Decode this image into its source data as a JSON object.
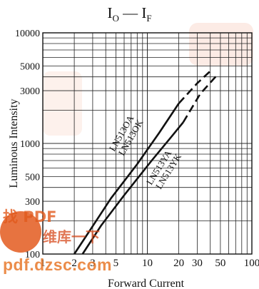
{
  "chart_data": {
    "type": "line",
    "title": {
      "main": "I",
      "sub1": "O",
      "sep": "—",
      "main2": "I",
      "sub2": "F"
    },
    "xlabel": "Forward Current",
    "ylabel": "Luminous Intensity",
    "x_scale": "log",
    "y_scale": "log",
    "xlim": [
      1,
      100
    ],
    "ylim": [
      100,
      10000
    ],
    "x_ticks": [
      "1",
      "2",
      "3",
      "5",
      "10",
      "20",
      "30",
      "50",
      "100"
    ],
    "y_ticks": [
      "100",
      "300",
      "500",
      "1000",
      "3000",
      "5000",
      "10000"
    ],
    "grid": true,
    "series": [
      {
        "name": "LN513OA LN513OK",
        "solid": [
          [
            2.0,
            100
          ],
          [
            2.9,
            170
          ],
          [
            4.5,
            320
          ],
          [
            8,
            650
          ],
          [
            13,
            1250
          ],
          [
            20,
            2300
          ]
        ],
        "dashed": [
          [
            20,
            2300
          ],
          [
            30,
            3500
          ],
          [
            42,
            4700
          ]
        ]
      },
      {
        "name": "LN513YA LN513YK",
        "solid": [
          [
            2.4,
            100
          ],
          [
            3.6,
            180
          ],
          [
            6,
            340
          ],
          [
            11,
            700
          ],
          [
            17,
            1150
          ],
          [
            22,
            1550
          ]
        ],
        "dashed": [
          [
            22,
            1550
          ],
          [
            32,
            2800
          ],
          [
            47,
            4200
          ]
        ]
      }
    ],
    "labels": {
      "series_a": [
        "LN513OA",
        "LN513OK"
      ],
      "series_b": [
        "LN513YA",
        "LN513YK"
      ]
    }
  },
  "watermark": {
    "url": "pdf.dzsc.com",
    "cn_top": "找 PDF",
    "cn_bottom": "维库一下"
  }
}
